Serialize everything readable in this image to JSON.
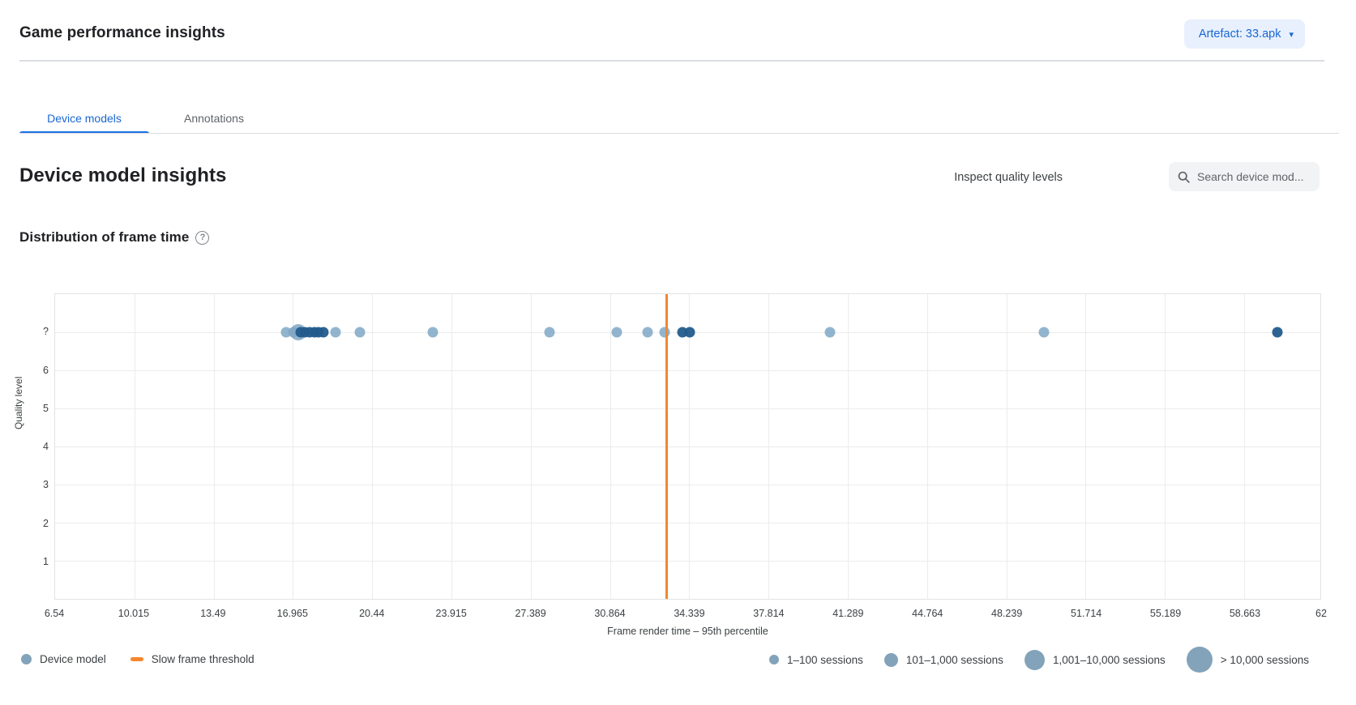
{
  "header": {
    "title": "Game performance insights",
    "artefact_button_label": "Artefact: 33.apk"
  },
  "icons": {
    "caret_down": "▾",
    "help_glyph": "?"
  },
  "tabs": [
    {
      "label": "Device models",
      "active": true
    },
    {
      "label": "Annotations",
      "active": false
    }
  ],
  "section": {
    "title": "Device model insights",
    "inspect_link": "Inspect quality levels",
    "search_placeholder": "Search device mod..."
  },
  "chart": {
    "title": "Distribution of frame time"
  },
  "chart_data": {
    "type": "scatter",
    "title": "Distribution of frame time",
    "xlabel": "Frame render time – 95th percentile",
    "ylabel": "Quality level",
    "xlim": [
      6.54,
      62
    ],
    "x_ticks": [
      6.54,
      10.015,
      13.49,
      16.965,
      20.44,
      23.915,
      27.389,
      30.864,
      34.339,
      37.814,
      41.289,
      44.764,
      48.239,
      51.714,
      55.189,
      58.663,
      62
    ],
    "x_tick_labels": [
      "6.54",
      "10.015",
      "13.49",
      "16.965",
      "20.44",
      "23.915",
      "27.389",
      "30.864",
      "34.339",
      "37.814",
      "41.289",
      "44.764",
      "48.239",
      "51.714",
      "55.189",
      "58.663",
      "62"
    ],
    "y_tick_labels": [
      "?",
      "6",
      "5",
      "4",
      "3",
      "2",
      "1"
    ],
    "grid": true,
    "slow_frame_threshold": 33.33,
    "points_y_level": "?",
    "points": [
      {
        "x": 16.65,
        "y": "?",
        "size": "s",
        "shade": "light"
      },
      {
        "x": 17.0,
        "y": "?",
        "size": "s",
        "shade": "light"
      },
      {
        "x": 17.2,
        "y": "?",
        "size": "m",
        "shade": "light"
      },
      {
        "x": 17.3,
        "y": "?",
        "size": "s",
        "shade": "dark"
      },
      {
        "x": 17.5,
        "y": "?",
        "size": "s",
        "shade": "dark"
      },
      {
        "x": 17.7,
        "y": "?",
        "size": "s",
        "shade": "dark"
      },
      {
        "x": 17.9,
        "y": "?",
        "size": "s",
        "shade": "dark"
      },
      {
        "x": 18.1,
        "y": "?",
        "size": "s",
        "shade": "dark"
      },
      {
        "x": 18.3,
        "y": "?",
        "size": "s",
        "shade": "dark"
      },
      {
        "x": 18.85,
        "y": "?",
        "size": "s",
        "shade": "light"
      },
      {
        "x": 19.9,
        "y": "?",
        "size": "s",
        "shade": "light"
      },
      {
        "x": 23.1,
        "y": "?",
        "size": "s",
        "shade": "light"
      },
      {
        "x": 28.2,
        "y": "?",
        "size": "s",
        "shade": "light"
      },
      {
        "x": 31.15,
        "y": "?",
        "size": "s",
        "shade": "light"
      },
      {
        "x": 32.5,
        "y": "?",
        "size": "s",
        "shade": "light"
      },
      {
        "x": 33.25,
        "y": "?",
        "size": "s",
        "shade": "light"
      },
      {
        "x": 34.05,
        "y": "?",
        "size": "s",
        "shade": "dark"
      },
      {
        "x": 34.35,
        "y": "?",
        "size": "s",
        "shade": "dark"
      },
      {
        "x": 40.5,
        "y": "?",
        "size": "s",
        "shade": "light"
      },
      {
        "x": 49.9,
        "y": "?",
        "size": "s",
        "shade": "light"
      },
      {
        "x": 60.1,
        "y": "?",
        "size": "s",
        "shade": "dark"
      }
    ],
    "colors": {
      "point_light": "#7fa7c6",
      "point_dark": "#235c8c",
      "threshold": "#f5862e",
      "legend_dot": "#82a3ba"
    },
    "legend_position": "bottom"
  },
  "legend": {
    "device_model": "Device model",
    "slow_frame_threshold": "Slow frame threshold",
    "sizes": [
      {
        "label": "1–100 sessions"
      },
      {
        "label": "101–1,000 sessions"
      },
      {
        "label": "1,001–10,000 sessions"
      },
      {
        "label": "> 10,000 sessions"
      }
    ]
  }
}
